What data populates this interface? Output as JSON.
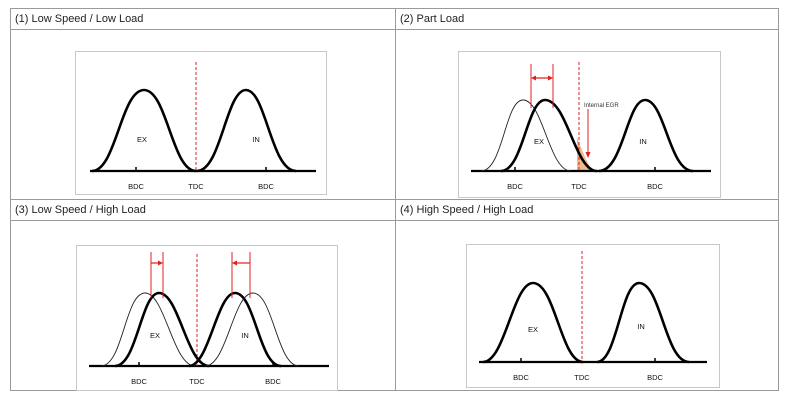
{
  "panels": [
    {
      "title": "(1) Low Speed / Low Load",
      "labels": {
        "ex": "EX",
        "in": "IN",
        "bdc_left": "BDC",
        "tdc": "TDC",
        "bdc_right": "BDC"
      }
    },
    {
      "title": "(2) Part Load",
      "labels": {
        "ex": "EX",
        "in": "IN",
        "bdc_left": "BDC",
        "tdc": "TDC",
        "bdc_right": "BDC",
        "annotation": "Internal EGR"
      }
    },
    {
      "title": "(3) Low Speed / High Load",
      "labels": {
        "ex": "EX",
        "in": "IN",
        "bdc_left": "BDC",
        "tdc": "TDC",
        "bdc_right": "BDC"
      }
    },
    {
      "title": "(4) High Speed / High Load",
      "labels": {
        "ex": "EX",
        "in": "IN",
        "bdc_left": "BDC",
        "tdc": "TDC",
        "bdc_right": "BDC"
      }
    }
  ],
  "colors": {
    "curve": "#000000",
    "tdc_line": "#e02020",
    "egr_fill": "#f2b98a",
    "border": "#9a9a9a"
  }
}
